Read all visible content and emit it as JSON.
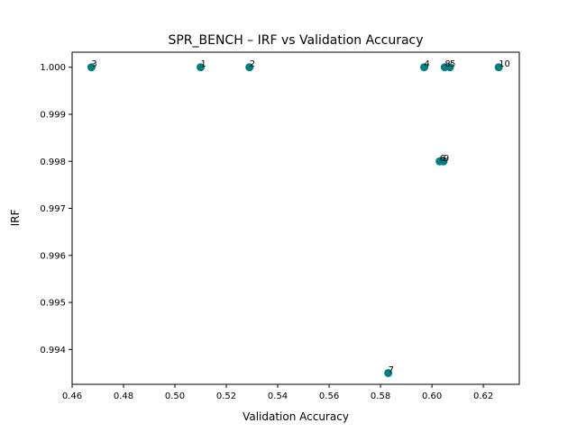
{
  "chart_data": {
    "type": "scatter",
    "title": "SPR_BENCH – IRF vs Validation Accuracy",
    "xlabel": "Validation Accuracy",
    "ylabel": "IRF",
    "xlim": [
      0.46,
      0.634
    ],
    "ylim": [
      0.99326,
      1.00032
    ],
    "xticks": [
      0.46,
      0.48,
      0.5,
      0.52,
      0.54,
      0.56,
      0.58,
      0.6,
      0.62
    ],
    "xtick_labels": [
      "0.46",
      "0.48",
      "0.50",
      "0.52",
      "0.54",
      "0.56",
      "0.58",
      "0.60",
      "0.62"
    ],
    "yticks": [
      0.994,
      0.995,
      0.996,
      0.997,
      0.998,
      0.999,
      1.0
    ],
    "ytick_labels": [
      "0.994",
      "0.995",
      "0.996",
      "0.997",
      "0.998",
      "0.999",
      "1.000"
    ],
    "grid": false,
    "marker_color": "#008080",
    "points": [
      {
        "label": "1",
        "x": 0.51,
        "y": 1.0
      },
      {
        "label": "2",
        "x": 0.529,
        "y": 1.0
      },
      {
        "label": "3",
        "x": 0.4675,
        "y": 1.0
      },
      {
        "label": "4",
        "x": 0.597,
        "y": 1.0
      },
      {
        "label": "5",
        "x": 0.607,
        "y": 1.0
      },
      {
        "label": "6",
        "x": 0.603,
        "y": 0.998
      },
      {
        "label": "7",
        "x": 0.583,
        "y": 0.9935
      },
      {
        "label": "8",
        "x": 0.605,
        "y": 1.0
      },
      {
        "label": "9",
        "x": 0.6045,
        "y": 0.998
      },
      {
        "label": "10",
        "x": 0.626,
        "y": 1.0
      }
    ]
  }
}
